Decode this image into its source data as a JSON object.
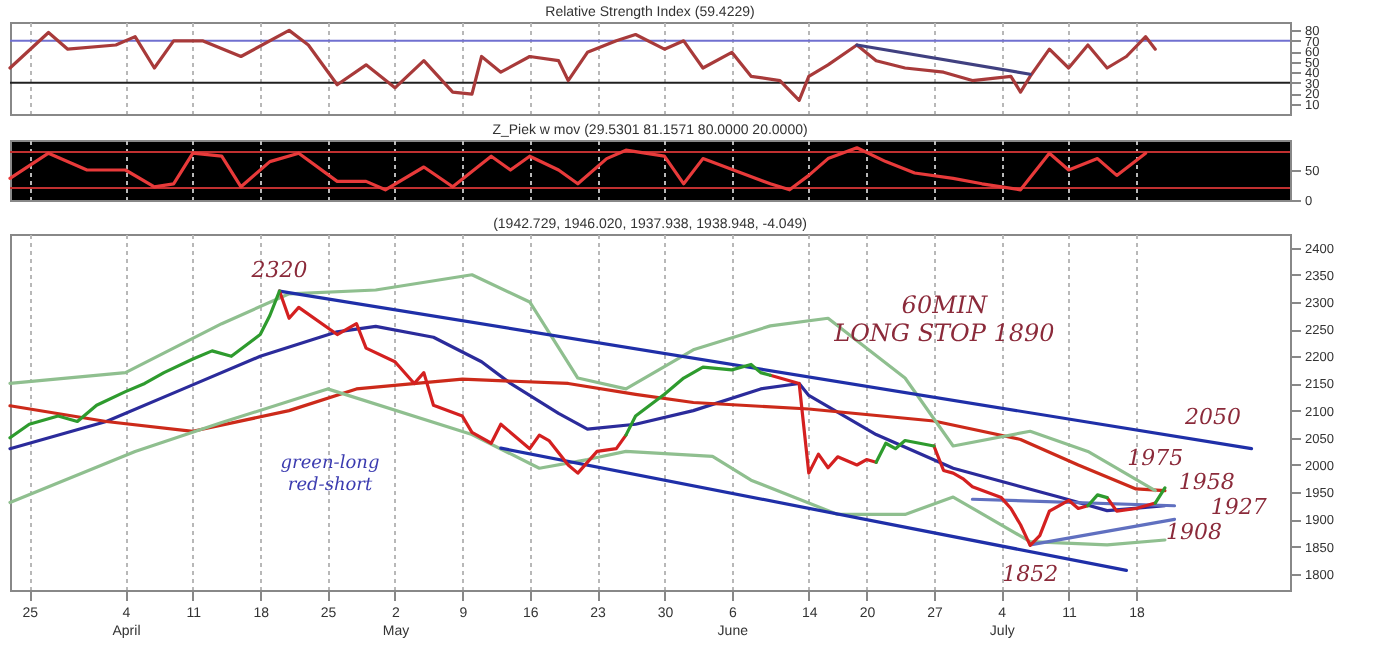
{
  "chart_data": [
    {
      "type": "line",
      "title": "Relative Strength Index (59.4229)",
      "xlim": [
        "--03-23",
        "--08-03"
      ],
      "ylim": [
        0,
        88
      ],
      "yticks": [
        10,
        20,
        30,
        40,
        50,
        60,
        70,
        80
      ],
      "grid": "x",
      "tick_labels": "y",
      "xticks": [
        {
          "value": "--03-25",
          "label": "25"
        },
        {
          "value": "--04-04",
          "label": "4\nApril"
        },
        {
          "value": "--04-11",
          "label": "11"
        },
        {
          "value": "--04-18",
          "label": "18"
        },
        {
          "value": "--04-25",
          "label": "25"
        },
        {
          "value": "--05-02",
          "label": "2\nMay"
        },
        {
          "value": "--05-09",
          "label": "9"
        },
        {
          "value": "--05-16",
          "label": "16"
        },
        {
          "value": "--05-23",
          "label": "23"
        },
        {
          "value": "--05-30",
          "label": "30"
        },
        {
          "value": "--06-06",
          "label": "6\nJune"
        },
        {
          "value": "--06-14",
          "label": "14"
        },
        {
          "value": "--06-20",
          "label": "20"
        },
        {
          "value": "--06-27",
          "label": "27"
        },
        {
          "value": "--07-04",
          "label": "4\nJuly"
        },
        {
          "value": "--07-11",
          "label": "11"
        },
        {
          "value": "--07-18",
          "label": "18"
        }
      ],
      "ref_lines": [
        {
          "axis": "y",
          "value": 70,
          "color": "#7070d0"
        },
        {
          "axis": "y",
          "value": 30,
          "color": "#202020"
        }
      ],
      "series": [
        {
          "color": "#a83a3a",
          "x": [
            "--03-23",
            "--03-27",
            "--03-29",
            "--04-03",
            "--04-05",
            "--04-07",
            "--04-09",
            "--04-12",
            "--04-16",
            "--04-21",
            "--04-23",
            "--04-26",
            "--04-29",
            "--05-02",
            "--05-05",
            "--05-08",
            "--05-10",
            "--05-11",
            "--05-13",
            "--05-16",
            "--05-19",
            "--05-20",
            "--05-22",
            "--05-25",
            "--05-27",
            "--05-30",
            "--06-01",
            "--06-03",
            "--06-06",
            "--06-08",
            "--06-11",
            "--06-13",
            "--06-14",
            "--06-16",
            "--06-19",
            "--06-21",
            "--06-24",
            "--06-28",
            "--07-01",
            "--07-05",
            "--07-06",
            "--07-07",
            "--07-09",
            "--07-11",
            "--07-13",
            "--07-15",
            "--07-17",
            "--07-19",
            "--07-20"
          ],
          "values": [
            44,
            78,
            62,
            66,
            74,
            44,
            70,
            70,
            55,
            80,
            66,
            28,
            47,
            25,
            51,
            21,
            19,
            55,
            40,
            55,
            51,
            32,
            59,
            70,
            76,
            62,
            70,
            44,
            59,
            36,
            32,
            13,
            36,
            47,
            66,
            51,
            44,
            40,
            32,
            36,
            21,
            36,
            62,
            44,
            66,
            44,
            55,
            74,
            62
          ]
        },
        {
          "color": "#404080",
          "x": [
            "--06-19",
            "--07-07"
          ],
          "values": [
            66,
            38
          ]
        }
      ]
    },
    {
      "type": "line",
      "title": "Z_Piek w mov (29.5301 81.1571 80.0000 20.0000)",
      "xlim": [
        "--03-23",
        "--08-03"
      ],
      "ylim": [
        0,
        100
      ],
      "yticks": [
        0,
        50
      ],
      "grid": "x",
      "tick_labels": "y",
      "xticks": [
        {
          "value": "--03-25",
          "label": "25"
        },
        {
          "value": "--04-04",
          "label": "4\nApril"
        },
        {
          "value": "--04-11",
          "label": "11"
        },
        {
          "value": "--04-18",
          "label": "18"
        },
        {
          "value": "--04-25",
          "label": "25"
        },
        {
          "value": "--05-02",
          "label": "2\nMay"
        },
        {
          "value": "--05-09",
          "label": "9"
        },
        {
          "value": "--05-16",
          "label": "16"
        },
        {
          "value": "--05-23",
          "label": "23"
        },
        {
          "value": "--05-30",
          "label": "30"
        },
        {
          "value": "--06-06",
          "label": "6\nJune"
        },
        {
          "value": "--06-14",
          "label": "14"
        },
        {
          "value": "--06-20",
          "label": "20"
        },
        {
          "value": "--06-27",
          "label": "27"
        },
        {
          "value": "--07-04",
          "label": "4\nJuly"
        },
        {
          "value": "--07-11",
          "label": "11"
        },
        {
          "value": "--07-18",
          "label": "18"
        }
      ],
      "ref_lines": [
        {
          "axis": "y",
          "value": 80,
          "color": "#c03030"
        },
        {
          "axis": "y",
          "value": 20,
          "color": "#c03030"
        }
      ],
      "series": [
        {
          "color": "#e83a3a",
          "x": [
            "--03-23",
            "--03-27",
            "--03-31",
            "--04-04",
            "--04-07",
            "--04-09",
            "--04-11",
            "--04-14",
            "--04-16",
            "--04-19",
            "--04-22",
            "--04-26",
            "--04-29",
            "--05-01",
            "--05-05",
            "--05-08",
            "--05-12",
            "--05-14",
            "--05-16",
            "--05-19",
            "--05-21",
            "--05-24",
            "--05-26",
            "--05-30",
            "--06-01",
            "--06-03",
            "--06-07",
            "--06-10",
            "--06-12",
            "--06-14",
            "--06-16",
            "--06-19",
            "--06-22",
            "--06-25",
            "--06-29",
            "--07-02",
            "--07-06",
            "--07-09",
            "--07-11",
            "--07-14",
            "--07-16",
            "--07-19"
          ],
          "values": [
            36,
            78,
            50,
            50,
            22,
            27,
            78,
            73,
            22,
            64,
            78,
            31,
            31,
            17,
            55,
            22,
            73,
            50,
            73,
            50,
            27,
            69,
            83,
            73,
            27,
            69,
            45,
            27,
            17,
            41,
            69,
            87,
            64,
            45,
            36,
            27,
            17,
            78,
            50,
            69,
            41,
            78
          ]
        }
      ]
    },
    {
      "type": "line",
      "title": "(1942.729, 1946.020, 1937.938, 1938.948, -4.049)",
      "xlim": [
        "--03-23",
        "--08-03"
      ],
      "ylim": [
        1770,
        2425
      ],
      "yticks": [
        1800,
        1850,
        1900,
        1950,
        2000,
        2050,
        2100,
        2150,
        2200,
        2250,
        2300,
        2350,
        2400
      ],
      "grid": "x",
      "xticks": [
        {
          "value": "--03-25",
          "label": "25"
        },
        {
          "value": "--04-04",
          "label": "4\nApril"
        },
        {
          "value": "--04-11",
          "label": "11"
        },
        {
          "value": "--04-18",
          "label": "18"
        },
        {
          "value": "--04-25",
          "label": "25"
        },
        {
          "value": "--05-02",
          "label": "2\nMay"
        },
        {
          "value": "--05-09",
          "label": "9"
        },
        {
          "value": "--05-16",
          "label": "16"
        },
        {
          "value": "--05-23",
          "label": "23"
        },
        {
          "value": "--05-30",
          "label": "30"
        },
        {
          "value": "--06-06",
          "label": "6\nJune"
        },
        {
          "value": "--06-14",
          "label": "14"
        },
        {
          "value": "--06-20",
          "label": "20"
        },
        {
          "value": "--06-27",
          "label": "27"
        },
        {
          "value": "--07-04",
          "label": "4\nJuly"
        },
        {
          "value": "--07-11",
          "label": "11"
        },
        {
          "value": "--07-18",
          "label": "18"
        }
      ],
      "annotations": [
        "60MIN\nLONG STOP 1890",
        "green-long\nred-short",
        {
          "text": "2320",
          "x": "--04-20",
          "y": 2320
        },
        {
          "text": "2050",
          "x": "--07-26",
          "y": 2050
        },
        {
          "text": "1975",
          "x": "--07-20",
          "y": 1975
        },
        "1958",
        "1927",
        "1908",
        {
          "text": "1852",
          "x": "--07-07",
          "y": 1852
        }
      ],
      "series": [
        {
          "color": "#2b2b9b",
          "x": [
            "--03-23",
            "--04-02",
            "--04-10",
            "--04-18",
            "--04-26",
            "--04-30",
            "--05-06",
            "--05-11",
            "--05-14",
            "--05-19",
            "--05-22",
            "--05-27",
            "--06-02",
            "--06-09",
            "--06-13",
            "--06-14",
            "--06-21",
            "--06-29",
            "--07-10",
            "--07-15",
            "--07-21"
          ],
          "values": [
            2030,
            2080,
            2140,
            2200,
            2245,
            2255,
            2235,
            2190,
            2150,
            2095,
            2066,
            2075,
            2100,
            2140,
            2150,
            2128,
            2056,
            1994,
            1941,
            1916,
            1925
          ]
        },
        {
          "color": "#cc2a1a",
          "x": [
            "--03-23",
            "--04-02",
            "--04-11",
            "--04-21",
            "--04-28",
            "--05-09",
            "--05-20",
            "--05-27",
            "--06-02",
            "--06-14",
            "--06-27",
            "--07-06",
            "--07-12",
            "--07-18",
            "--07-21"
          ],
          "values": [
            2109,
            2080,
            2062,
            2100,
            2140,
            2158,
            2150,
            2130,
            2115,
            2103,
            2081,
            2047,
            2000,
            1956,
            1953
          ]
        },
        {
          "color": "#8fbf8f",
          "x": [
            "--03-23",
            "--04-04",
            "--04-14",
            "--04-21",
            "--04-30",
            "--05-10",
            "--05-16",
            "--05-21",
            "--05-26",
            "--06-02",
            "--06-10",
            "--06-16",
            "--06-24",
            "--06-29",
            "--07-07",
            "--07-13",
            "--07-20"
          ],
          "values": [
            2150,
            2170,
            2260,
            2315,
            2322,
            2350,
            2300,
            2160,
            2140,
            2212,
            2256,
            2270,
            2160,
            2035,
            2062,
            2025,
            1953
          ]
        },
        {
          "color": "#8fbf8f",
          "x": [
            "--03-23",
            "--04-05",
            "--04-14",
            "--04-25",
            "--05-10",
            "--05-17",
            "--05-22",
            "--05-26",
            "--06-04",
            "--06-08",
            "--06-17",
            "--06-24",
            "--06-29",
            "--07-07",
            "--07-15",
            "--07-21"
          ],
          "values": [
            1931,
            2025,
            2078,
            2140,
            2056,
            1994,
            2010,
            2025,
            2016,
            1972,
            1909,
            1909,
            1941,
            1859,
            1853,
            1862
          ]
        },
        {
          "color": "#1f2fa8",
          "x": [
            "--04-20",
            "--07-30"
          ],
          "values": [
            2320,
            2030
          ]
        },
        {
          "color": "#1f2fa8",
          "x": [
            "--05-13",
            "--07-17"
          ],
          "values": [
            2031,
            1806
          ]
        },
        {
          "color": "#6070c0",
          "x": [
            "--07-07",
            "--07-22"
          ],
          "values": [
            1853,
            1900
          ]
        },
        {
          "color": "#6070c0",
          "x": [
            "--07-01",
            "--07-22"
          ],
          "values": [
            1937,
            1925
          ]
        },
        {
          "color": "#d42020",
          "x": [
            "--04-20",
            "--04-21",
            "--04-22",
            "--04-26",
            "--04-28",
            "--04-29",
            "--05-02",
            "--05-04",
            "--05-05",
            "--05-06",
            "--05-09",
            "--05-10",
            "--05-12",
            "--05-13",
            "--05-16",
            "--05-17",
            "--05-18",
            "--05-20",
            "--05-21",
            "--05-23",
            "--05-25",
            "--05-26",
            "--06-01",
            "--06-10",
            "--06-13",
            "--06-14",
            "--06-15",
            "--06-16",
            "--06-17",
            "--06-19",
            "--06-20",
            "--06-21",
            "--06-24",
            "--06-27",
            "--06-28",
            "--06-29",
            "--06-30",
            "--07-01",
            "--07-04",
            "--07-05",
            "--07-06",
            "--07-07",
            "--07-08",
            "--07-09",
            "--07-11",
            "--07-12",
            "--07-13",
            "--07-14",
            "--07-15",
            "--07-16",
            "--07-18",
            "--07-19",
            "--07-20"
          ],
          "values": [
            2320,
            2270,
            2290,
            2240,
            2260,
            2215,
            2190,
            2150,
            2170,
            2110,
            2090,
            2060,
            2040,
            2075,
            2030,
            2055,
            2045,
            2000,
            1985,
            2025,
            2030,
            2055,
            null,
            2165,
            2150,
            1985,
            2020,
            1995,
            2015,
            2000,
            2010,
            2005,
            null,
            2035,
            1990,
            1985,
            1975,
            1960,
            1940,
            1920,
            1890,
            1852,
            1870,
            1915,
            1935,
            1920,
            1925,
            null,
            1940,
            1915,
            1920,
            1925,
            1930
          ]
        },
        {
          "color": "#2e9b2e",
          "x": [
            "--03-23",
            "--03-25",
            "--03-28",
            "--03-30",
            "--04-01",
            "--04-04",
            "--04-06",
            "--04-08",
            "--04-11",
            "--04-13",
            "--04-15",
            "--04-18",
            "--04-19",
            "--04-20",
            "--04-25",
            "--05-26",
            "--05-27",
            "--05-30",
            "--06-01",
            "--06-03",
            "--06-06",
            "--06-08",
            "--06-09",
            "--06-10",
            "--06-15",
            "--06-21",
            "--06-22",
            "--06-23",
            "--06-24",
            "--06-27",
            "--07-01",
            "--07-13",
            "--07-14",
            "--07-15",
            "--07-17",
            "--07-20",
            "--07-21"
          ],
          "values": [
            2050,
            2075,
            2090,
            2080,
            2110,
            2135,
            2150,
            2170,
            2195,
            2210,
            2200,
            2240,
            2275,
            2320,
            null,
            2055,
            2090,
            2130,
            2160,
            2180,
            2175,
            2185,
            2170,
            2165,
            null,
            2005,
            2040,
            2030,
            2045,
            2035,
            null,
            1925,
            1945,
            1940,
            null,
            1930,
            1958
          ]
        }
      ]
    }
  ]
}
